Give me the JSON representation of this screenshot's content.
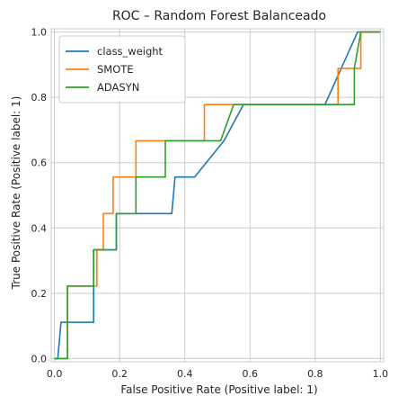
{
  "chart_data": {
    "type": "line",
    "title": "ROC – Random Forest Balanceado",
    "xlabel": "False Positive Rate (Positive label: 1)",
    "ylabel": "True Positive Rate (Positive label: 1)",
    "xlim": [
      -0.01,
      1.01
    ],
    "ylim": [
      -0.01,
      1.01
    ],
    "x_ticks": [
      0.0,
      0.2,
      0.4,
      0.6,
      0.8,
      1.0
    ],
    "y_ticks": [
      0.0,
      0.2,
      0.4,
      0.6,
      0.8,
      1.0
    ],
    "x_tick_labels": [
      "0.0",
      "0.2",
      "0.4",
      "0.6",
      "0.8",
      "1.0"
    ],
    "y_tick_labels": [
      "0.0",
      "0.2",
      "0.4",
      "0.6",
      "0.8",
      "1.0"
    ],
    "grid": true,
    "legend_position": "upper-left",
    "series": [
      {
        "name": "class_weight",
        "color": "#1f77b4",
        "points": [
          [
            0.0,
            0.0
          ],
          [
            0.01,
            0.0
          ],
          [
            0.02,
            0.111
          ],
          [
            0.12,
            0.111
          ],
          [
            0.12,
            0.333
          ],
          [
            0.19,
            0.333
          ],
          [
            0.19,
            0.444
          ],
          [
            0.36,
            0.444
          ],
          [
            0.37,
            0.556
          ],
          [
            0.43,
            0.556
          ],
          [
            0.52,
            0.667
          ],
          [
            0.58,
            0.778
          ],
          [
            0.83,
            0.778
          ],
          [
            0.93,
            1.0
          ],
          [
            1.0,
            1.0
          ]
        ]
      },
      {
        "name": "SMOTE",
        "color": "#ff7f0e",
        "points": [
          [
            0.0,
            0.0
          ],
          [
            0.04,
            0.0
          ],
          [
            0.04,
            0.222
          ],
          [
            0.13,
            0.222
          ],
          [
            0.13,
            0.333
          ],
          [
            0.15,
            0.333
          ],
          [
            0.15,
            0.444
          ],
          [
            0.18,
            0.444
          ],
          [
            0.18,
            0.556
          ],
          [
            0.25,
            0.556
          ],
          [
            0.25,
            0.667
          ],
          [
            0.46,
            0.667
          ],
          [
            0.46,
            0.778
          ],
          [
            0.87,
            0.778
          ],
          [
            0.87,
            0.889
          ],
          [
            0.94,
            0.889
          ],
          [
            0.94,
            1.0
          ],
          [
            1.0,
            1.0
          ]
        ]
      },
      {
        "name": "ADASYN",
        "color": "#2ca02c",
        "points": [
          [
            0.0,
            0.0
          ],
          [
            0.04,
            0.0
          ],
          [
            0.04,
            0.222
          ],
          [
            0.12,
            0.222
          ],
          [
            0.12,
            0.333
          ],
          [
            0.19,
            0.333
          ],
          [
            0.19,
            0.444
          ],
          [
            0.25,
            0.444
          ],
          [
            0.25,
            0.556
          ],
          [
            0.34,
            0.556
          ],
          [
            0.34,
            0.667
          ],
          [
            0.51,
            0.667
          ],
          [
            0.55,
            0.778
          ],
          [
            0.92,
            0.778
          ],
          [
            0.92,
            0.889
          ],
          [
            0.94,
            1.0
          ],
          [
            1.0,
            1.0
          ]
        ]
      }
    ]
  }
}
